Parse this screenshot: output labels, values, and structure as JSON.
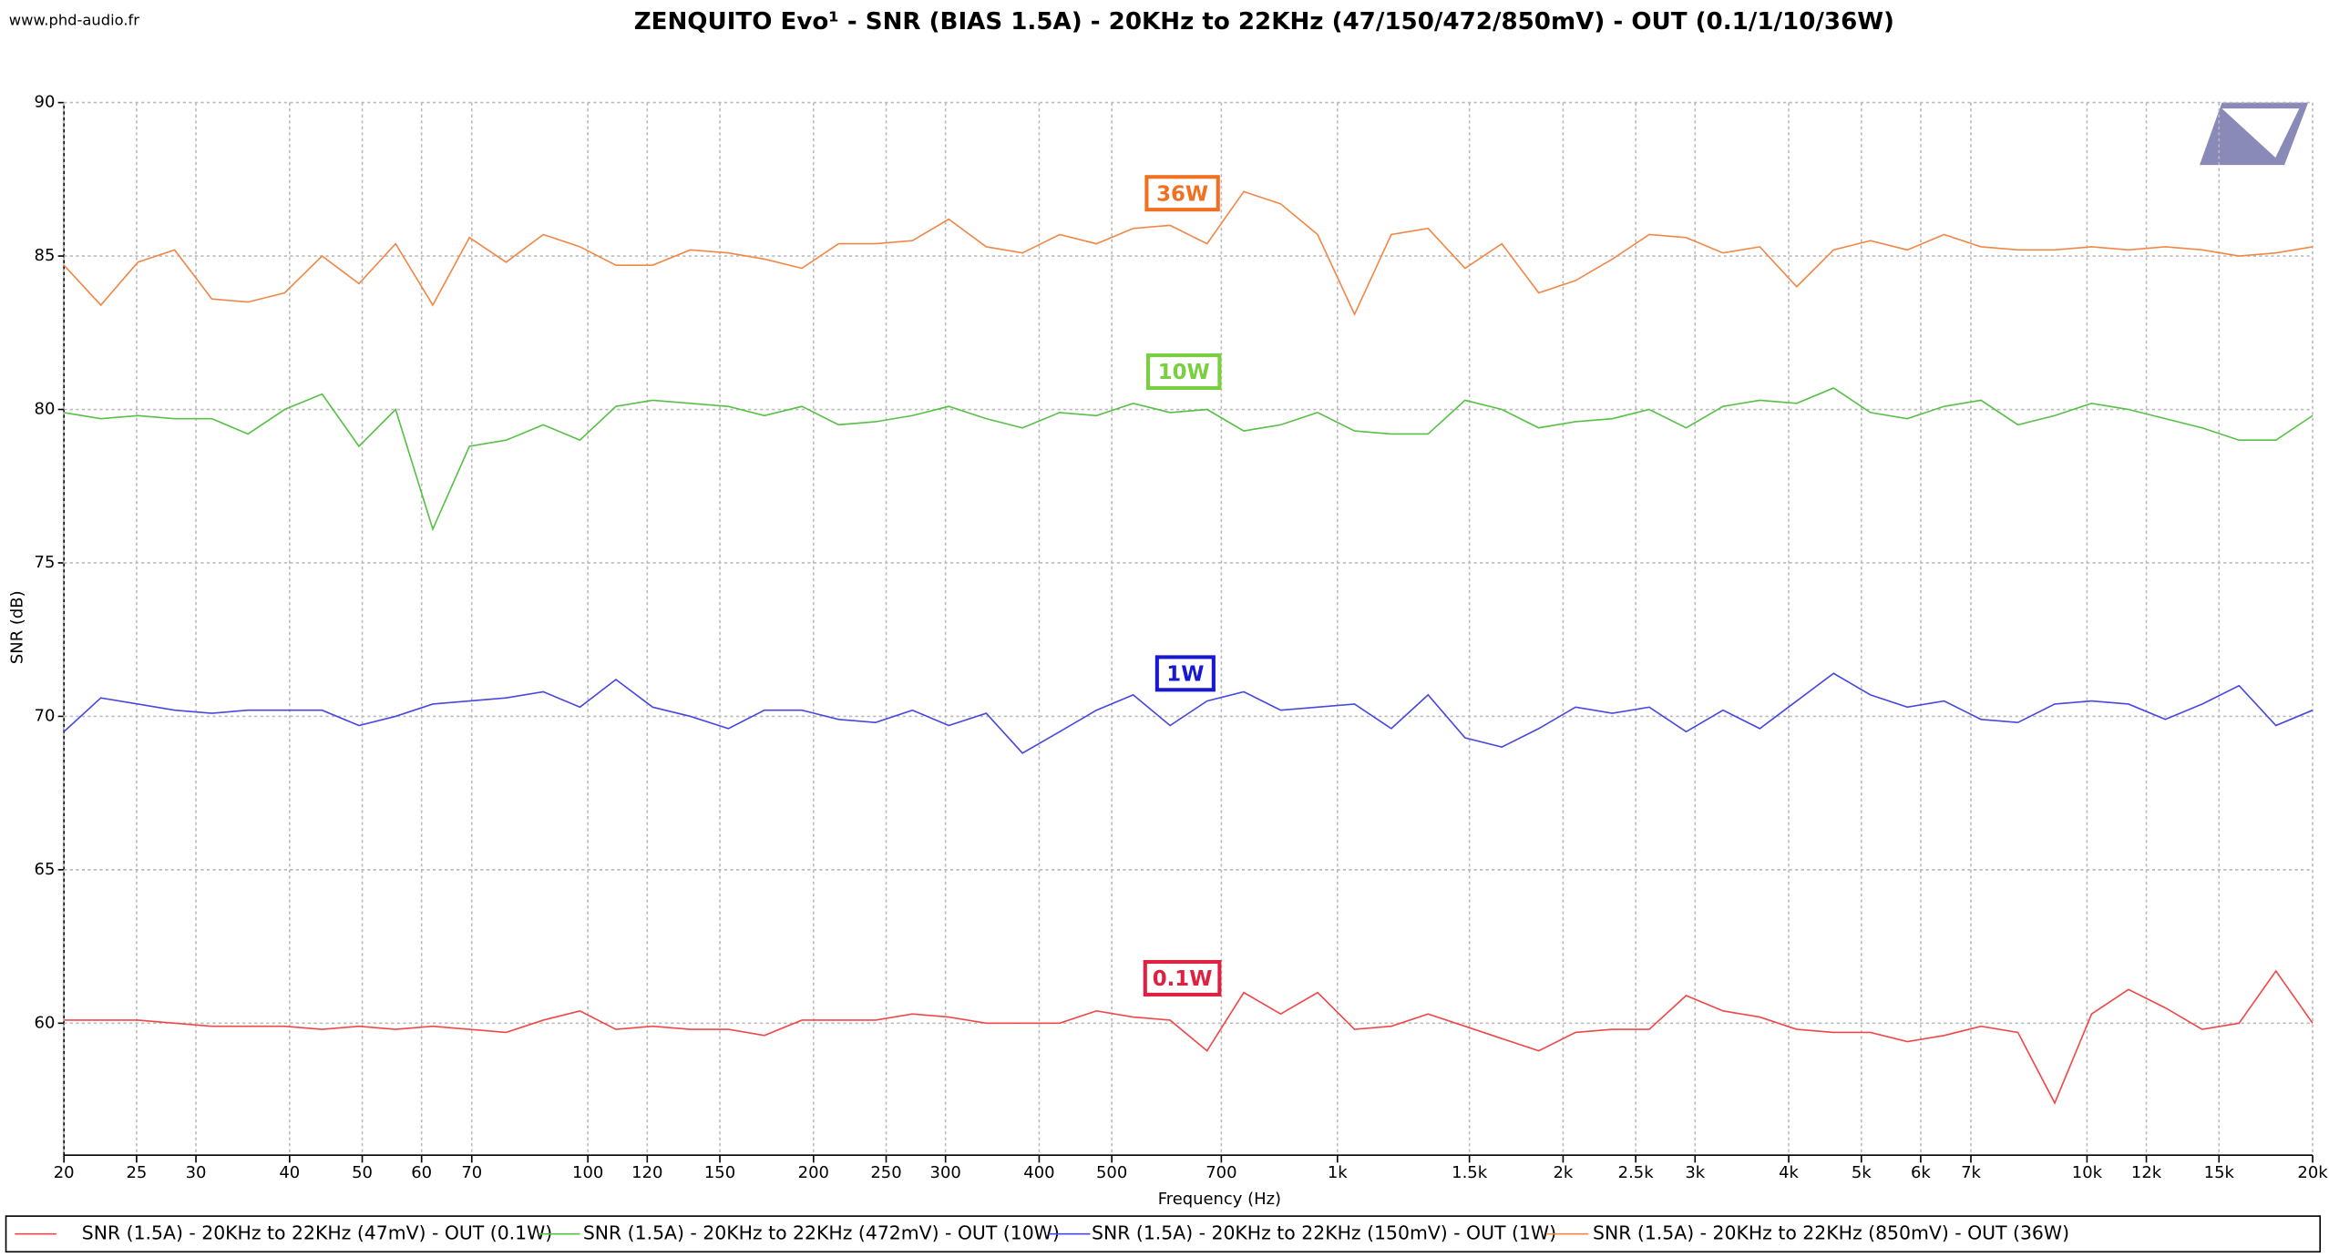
{
  "chart_data": {
    "type": "line",
    "title": "ZENQUITO Evo¹ - SNR (BIAS 1.5A) - 20KHz to 22KHz (47/150/472/850mV) - OUT (0.1/1/10/36W)",
    "watermark": "www.phd-audio.fr",
    "xlabel": "Frequency (Hz)",
    "ylabel": "SNR (dB)",
    "xscale": "log",
    "grid": true,
    "legend": "bottom",
    "xlim": [
      20,
      20000
    ],
    "ylim": [
      55.7,
      90
    ],
    "xticks": [
      20,
      25,
      30,
      40,
      50,
      60,
      70,
      100,
      120,
      150,
      200,
      250,
      300,
      400,
      500,
      700,
      {
        "value": 1000,
        "label": "1k"
      },
      {
        "value": 1500,
        "label": "1.5k"
      },
      {
        "value": 2000,
        "label": "2k"
      },
      {
        "value": 2500,
        "label": "2.5k"
      },
      {
        "value": 3000,
        "label": "3k"
      },
      {
        "value": 4000,
        "label": "4k"
      },
      {
        "value": 5000,
        "label": "5k"
      },
      {
        "value": 6000,
        "label": "6k"
      },
      {
        "value": 7000,
        "label": "7k"
      },
      {
        "value": 10000,
        "label": "10k"
      },
      {
        "value": 12000,
        "label": "12k"
      },
      {
        "value": 15000,
        "label": "15k"
      },
      {
        "value": 20000,
        "label": "20k"
      }
    ],
    "yticks": [
      60,
      65,
      70,
      75,
      80,
      85,
      90
    ],
    "x": [
      20,
      22.4,
      25.1,
      28.1,
      31.5,
      35.2,
      39.4,
      44.2,
      49.5,
      55.4,
      62.1,
      69.5,
      77.8,
      87.2,
      97.6,
      109,
      122,
      137,
      154,
      172,
      193,
      216,
      242,
      271,
      303,
      340,
      380,
      426,
      477,
      534,
      598,
      670,
      750,
      840,
      941,
      1054,
      1180,
      1321,
      1480,
      1657,
      1856,
      2078,
      2327,
      2606,
      2919,
      3269,
      3660,
      4099,
      4591,
      5141,
      5758,
      6448,
      7221,
      8087,
      9057,
      10143,
      11359,
      12721,
      14246,
      15954,
      17867,
      20000
    ],
    "series": [
      {
        "name": "SNR (1.5A) - 20KHz to 22KHz (47mV) - OUT (0.1W)",
        "color": "#f04848",
        "values": [
          60.1,
          60.1,
          60.1,
          60.0,
          59.9,
          59.9,
          59.9,
          59.8,
          59.9,
          59.8,
          59.9,
          59.8,
          59.7,
          60.1,
          60.4,
          59.8,
          59.9,
          59.8,
          59.8,
          59.6,
          60.1,
          60.1,
          60.1,
          60.3,
          60.2,
          60.0,
          60.0,
          60.0,
          60.4,
          60.2,
          60.1,
          59.1,
          61.0,
          60.3,
          61.0,
          59.8,
          59.9,
          60.3,
          59.9,
          59.5,
          59.1,
          59.7,
          59.8,
          59.8,
          60.9,
          60.4,
          60.2,
          59.8,
          59.7,
          59.7,
          59.4,
          59.6,
          59.9,
          59.7,
          57.4,
          60.3,
          61.1,
          60.5,
          59.8,
          60.0,
          61.7,
          60.0
        ]
      },
      {
        "name": "SNR (1.5A) - 20KHz to 22KHz (472mV) - OUT (10W)",
        "color": "#58c048",
        "values": [
          79.9,
          79.7,
          79.8,
          79.7,
          79.7,
          79.2,
          80.0,
          80.5,
          78.8,
          80.0,
          76.1,
          78.8,
          79.0,
          79.5,
          79.0,
          80.1,
          80.3,
          80.2,
          80.1,
          79.8,
          80.1,
          79.5,
          79.6,
          79.8,
          80.1,
          79.7,
          79.4,
          79.9,
          79.8,
          80.2,
          79.9,
          80.0,
          79.3,
          79.5,
          79.9,
          79.3,
          79.2,
          79.2,
          80.3,
          80.0,
          79.4,
          79.6,
          79.7,
          80.0,
          79.4,
          80.1,
          80.3,
          80.2,
          80.7,
          79.9,
          79.7,
          80.1,
          80.3,
          79.5,
          79.8,
          80.2,
          80.0,
          79.7,
          79.4,
          79.0,
          79.0,
          79.8
        ]
      },
      {
        "name": "SNR (1.5A) - 20KHz to 22KHz (150mV) - OUT (1W)",
        "color": "#4848e0",
        "values": [
          69.5,
          70.6,
          70.4,
          70.2,
          70.1,
          70.2,
          70.2,
          70.2,
          69.7,
          70.0,
          70.4,
          70.5,
          70.6,
          70.8,
          70.3,
          71.2,
          70.3,
          70.0,
          69.6,
          70.2,
          70.2,
          69.9,
          69.8,
          70.2,
          69.7,
          70.1,
          68.8,
          69.5,
          70.2,
          70.7,
          69.7,
          70.5,
          70.8,
          70.2,
          70.3,
          70.4,
          69.6,
          70.7,
          69.3,
          69.0,
          69.6,
          70.3,
          70.1,
          70.3,
          69.5,
          70.2,
          69.6,
          70.5,
          71.4,
          70.7,
          70.3,
          70.5,
          69.9,
          69.8,
          70.4,
          70.5,
          70.4,
          69.9,
          70.4,
          71.0,
          69.7,
          70.2
        ]
      },
      {
        "name": "SNR (1.5A) - 20KHz to 22KHz (850mV) - OUT (36W)",
        "color": "#f08848",
        "values": [
          84.7,
          83.4,
          84.8,
          85.2,
          83.6,
          83.5,
          83.8,
          85.0,
          84.1,
          85.4,
          83.4,
          85.6,
          84.8,
          85.7,
          85.3,
          84.7,
          84.7,
          85.2,
          85.1,
          84.9,
          84.6,
          85.4,
          85.4,
          85.5,
          86.2,
          85.3,
          85.1,
          85.7,
          85.4,
          85.9,
          86.0,
          85.4,
          87.1,
          86.7,
          85.7,
          83.1,
          85.7,
          85.9,
          84.6,
          85.4,
          83.8,
          84.2,
          84.9,
          85.7,
          85.6,
          85.1,
          85.3,
          84.0,
          85.2,
          85.5,
          85.2,
          85.7,
          85.3,
          85.2,
          85.2,
          85.3,
          85.2,
          85.3,
          85.2,
          85.0,
          85.1,
          85.3
        ]
      }
    ],
    "annotations": [
      {
        "text": "36W",
        "color": "#f07020"
      },
      {
        "text": "10W",
        "color": "#78d040"
      },
      {
        "text": "1W",
        "color": "#1818d0"
      },
      {
        "text": "0.1W",
        "color": "#e02040"
      }
    ]
  }
}
